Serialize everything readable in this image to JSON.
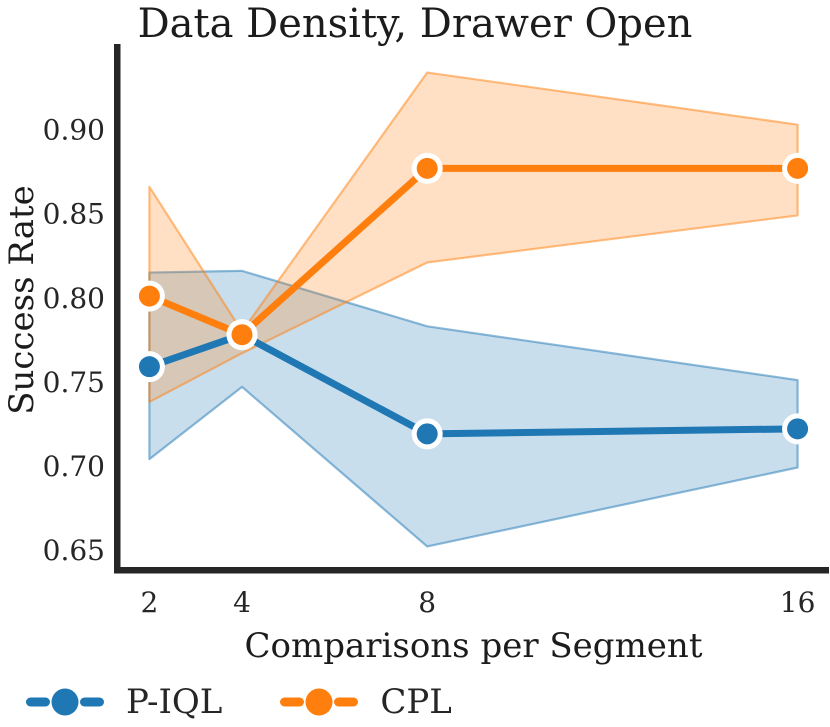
{
  "chart_data": {
    "type": "line",
    "title": "Data Density, Drawer Open",
    "xlabel": "Comparisons per Segment",
    "ylabel": "Success Rate",
    "x": [
      2,
      4,
      8,
      16
    ],
    "xtick_labels": [
      "2",
      "4",
      "8",
      "16"
    ],
    "ytick_values": [
      0.65,
      0.7,
      0.75,
      0.8,
      0.85,
      0.9
    ],
    "ytick_labels": [
      "0.65",
      "0.70",
      "0.75",
      "0.80",
      "0.85",
      "0.90"
    ],
    "xlim": [
      1.3,
      16.7
    ],
    "ylim": [
      0.638,
      0.951
    ],
    "grid": false,
    "legend_position": "bottom-left",
    "spine_color": "#262626",
    "series": [
      {
        "name": "P-IQL",
        "color": "#1f77b4",
        "values": [
          0.759,
          0.778,
          0.719,
          0.722
        ],
        "band_low": [
          0.704,
          0.747,
          0.652,
          0.699
        ],
        "band_high": [
          0.815,
          0.816,
          0.783,
          0.751
        ]
      },
      {
        "name": "CPL",
        "color": "#ff7f0e",
        "values": [
          0.801,
          0.778,
          0.877,
          0.877
        ],
        "band_low": [
          0.738,
          0.767,
          0.821,
          0.849
        ],
        "band_high": [
          0.866,
          0.78,
          0.934,
          0.903
        ]
      }
    ]
  }
}
